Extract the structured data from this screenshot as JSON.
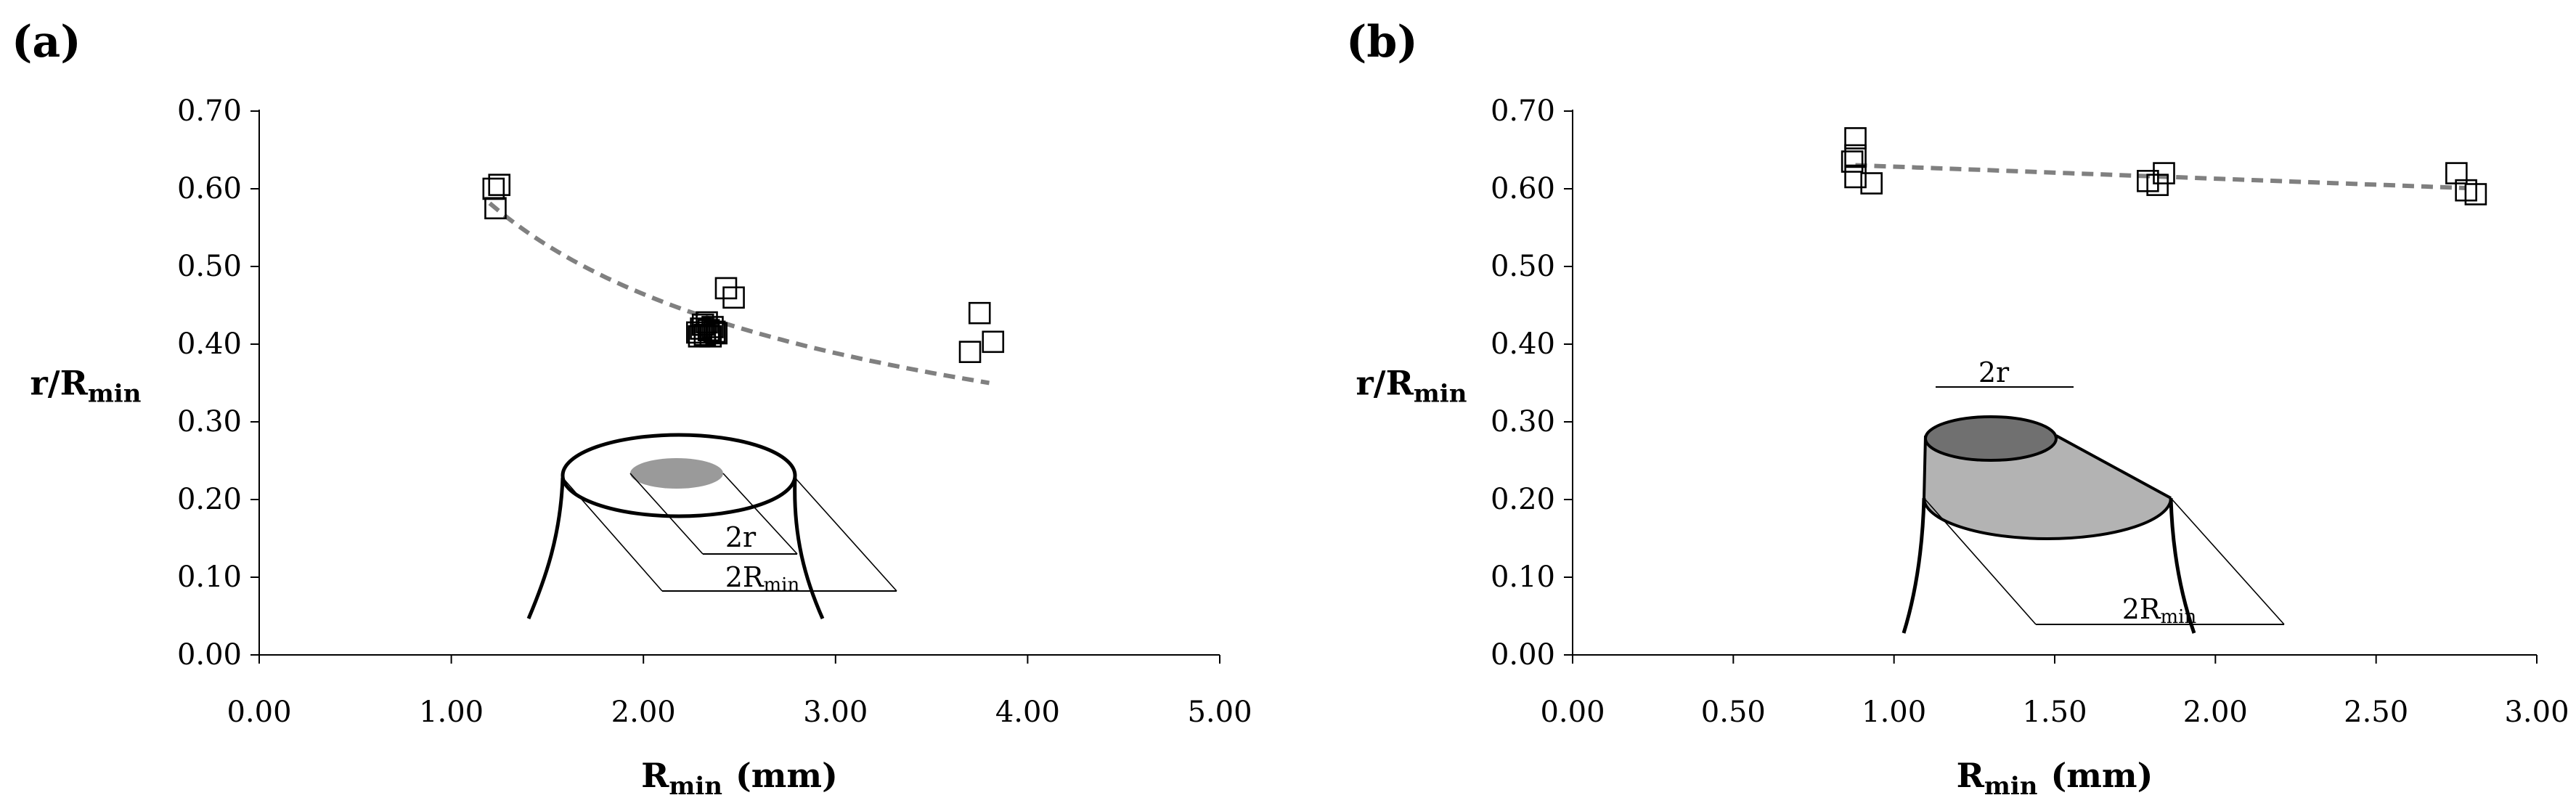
{
  "chart_data": [
    {
      "id": "a",
      "type": "scatter",
      "panel_label": "(a)",
      "title": "",
      "xlabel_main": "R",
      "xlabel_sub": "min",
      "xlabel_unit": "(mm)",
      "ylabel_main": "r/R",
      "ylabel_sub": "min",
      "xlim": [
        0,
        5
      ],
      "ylim": [
        0,
        0.7
      ],
      "xticks": [
        "0.00",
        "1.00",
        "2.00",
        "3.00",
        "4.00",
        "5.00"
      ],
      "yticks": [
        "0.00",
        "0.10",
        "0.20",
        "0.30",
        "0.40",
        "0.50",
        "0.60",
        "0.70"
      ],
      "grid": false,
      "marker": "open-square",
      "points": [
        {
          "x": 1.22,
          "y": 0.6
        },
        {
          "x": 1.25,
          "y": 0.605
        },
        {
          "x": 1.23,
          "y": 0.575
        },
        {
          "x": 2.43,
          "y": 0.472
        },
        {
          "x": 2.47,
          "y": 0.46
        },
        {
          "x": 2.28,
          "y": 0.415
        },
        {
          "x": 2.3,
          "y": 0.42
        },
        {
          "x": 2.32,
          "y": 0.412
        },
        {
          "x": 2.34,
          "y": 0.418
        },
        {
          "x": 2.36,
          "y": 0.422
        },
        {
          "x": 2.38,
          "y": 0.414
        },
        {
          "x": 2.31,
          "y": 0.425
        },
        {
          "x": 2.35,
          "y": 0.41
        },
        {
          "x": 2.29,
          "y": 0.41
        },
        {
          "x": 2.37,
          "y": 0.416
        },
        {
          "x": 2.33,
          "y": 0.428
        },
        {
          "x": 3.75,
          "y": 0.44
        },
        {
          "x": 3.82,
          "y": 0.403
        },
        {
          "x": 3.7,
          "y": 0.39
        }
      ],
      "trend": {
        "style": "dashed",
        "color": "#808080",
        "form": "power",
        "a": 0.63,
        "b": -0.44,
        "x_range": [
          1.2,
          3.8
        ]
      },
      "inset_labels": {
        "small": "2r",
        "large_main": "2R",
        "large_sub": "min"
      }
    },
    {
      "id": "b",
      "type": "scatter",
      "panel_label": "(b)",
      "title": "",
      "xlabel_main": "R",
      "xlabel_sub": "min",
      "xlabel_unit": "(mm)",
      "ylabel_main": "r/R",
      "ylabel_sub": "min",
      "xlim": [
        0,
        3
      ],
      "ylim": [
        0,
        0.7
      ],
      "xticks": [
        "0.00",
        "0.50",
        "1.00",
        "1.50",
        "2.00",
        "2.50",
        "3.00"
      ],
      "yticks": [
        "0.00",
        "0.10",
        "0.20",
        "0.30",
        "0.40",
        "0.50",
        "0.60",
        "0.70"
      ],
      "grid": false,
      "marker": "open-square",
      "points": [
        {
          "x": 0.88,
          "y": 0.665
        },
        {
          "x": 0.88,
          "y": 0.643
        },
        {
          "x": 0.87,
          "y": 0.635
        },
        {
          "x": 0.88,
          "y": 0.615
        },
        {
          "x": 0.93,
          "y": 0.607
        },
        {
          "x": 1.79,
          "y": 0.61
        },
        {
          "x": 1.82,
          "y": 0.605
        },
        {
          "x": 1.84,
          "y": 0.62
        },
        {
          "x": 2.75,
          "y": 0.62
        },
        {
          "x": 2.78,
          "y": 0.598
        },
        {
          "x": 2.81,
          "y": 0.593
        }
      ],
      "trend": {
        "style": "dashed",
        "color": "#808080",
        "form": "linear",
        "slope": -0.0155,
        "intercept": 0.644,
        "x_range": [
          0.88,
          2.78
        ]
      },
      "inset_labels": {
        "small": "2r",
        "large_main": "2R",
        "large_sub": "min"
      }
    }
  ]
}
